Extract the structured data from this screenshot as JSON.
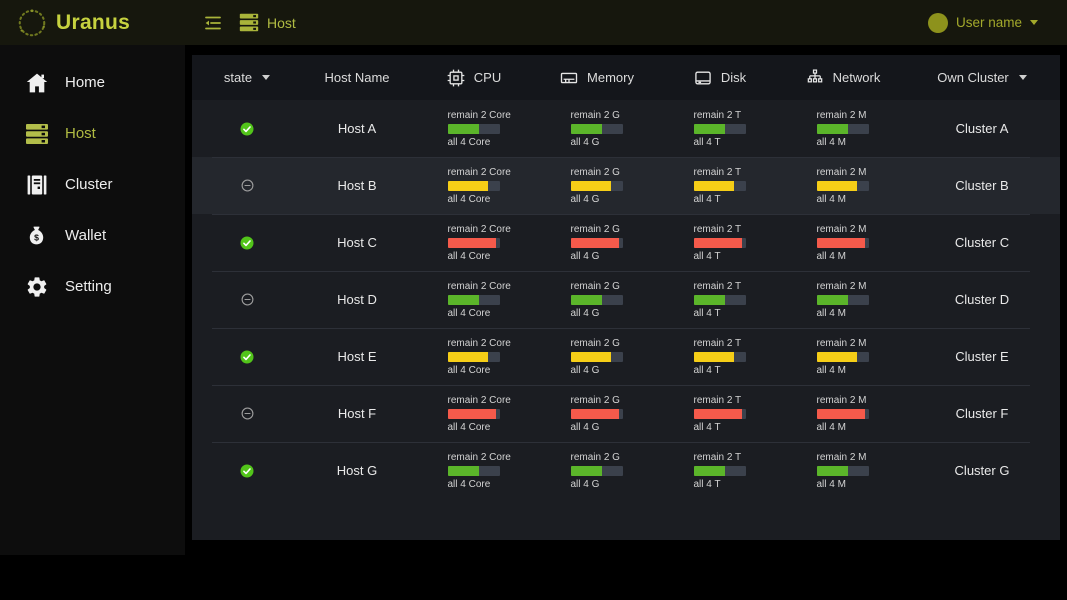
{
  "colors": {
    "accent": "#b0bb42",
    "green": "#5bb52a",
    "yellow": "#f6ce17",
    "red": "#f55a4b",
    "track": "#3b414c",
    "state_ok": "#52c41a",
    "state_paused": "#9c9c9c"
  },
  "topbar": {
    "logo_text": "Uranus",
    "breadcrumb_label": "Host",
    "user_name": "User name"
  },
  "sidebar": {
    "items": [
      {
        "label": "Home",
        "icon": "home-icon",
        "active": false
      },
      {
        "label": "Host",
        "icon": "host-icon",
        "active": true
      },
      {
        "label": "Cluster",
        "icon": "cluster-icon",
        "active": false
      },
      {
        "label": "Wallet",
        "icon": "wallet-icon",
        "active": false
      },
      {
        "label": "Setting",
        "icon": "setting-icon",
        "active": false
      }
    ]
  },
  "table": {
    "header": {
      "state": "state",
      "host": "Host Name",
      "cpu": "CPU",
      "memory": "Memory",
      "disk": "Disk",
      "network": "Network",
      "cluster": "Own Cluster"
    },
    "metric_fill_percent": {
      "green": 60,
      "yellow": 78,
      "red": 93
    },
    "rows": [
      {
        "state": "ok",
        "host": "Host A",
        "level": "green",
        "highlighted": false,
        "cpu": {
          "remain": "remain 2 Core",
          "all": "all 4 Core"
        },
        "memory": {
          "remain": "remain 2 G",
          "all": "all 4 G"
        },
        "disk": {
          "remain": "remain 2 T",
          "all": "all 4 T"
        },
        "network": {
          "remain": "remain 2 M",
          "all": "all 4 M"
        },
        "cluster": "Cluster A"
      },
      {
        "state": "paused",
        "host": "Host B",
        "level": "yellow",
        "highlighted": true,
        "cpu": {
          "remain": "remain 2 Core",
          "all": "all 4 Core"
        },
        "memory": {
          "remain": "remain 2 G",
          "all": "all 4 G"
        },
        "disk": {
          "remain": "remain 2 T",
          "all": "all 4 T"
        },
        "network": {
          "remain": "remain 2 M",
          "all": "all 4 M"
        },
        "cluster": "Cluster B"
      },
      {
        "state": "ok",
        "host": "Host C",
        "level": "red",
        "highlighted": false,
        "cpu": {
          "remain": "remain 2 Core",
          "all": "all 4 Core"
        },
        "memory": {
          "remain": "remain 2 G",
          "all": "all 4 G"
        },
        "disk": {
          "remain": "remain 2 T",
          "all": "all 4 T"
        },
        "network": {
          "remain": "remain 2 M",
          "all": "all 4 M"
        },
        "cluster": "Cluster C"
      },
      {
        "state": "paused",
        "host": "Host D",
        "level": "green",
        "highlighted": false,
        "cpu": {
          "remain": "remain 2 Core",
          "all": "all 4 Core"
        },
        "memory": {
          "remain": "remain 2 G",
          "all": "all 4 G"
        },
        "disk": {
          "remain": "remain 2 T",
          "all": "all 4 T"
        },
        "network": {
          "remain": "remain 2 M",
          "all": "all 4 M"
        },
        "cluster": "Cluster D"
      },
      {
        "state": "ok",
        "host": "Host E",
        "level": "yellow",
        "highlighted": false,
        "cpu": {
          "remain": "remain 2 Core",
          "all": "all 4 Core"
        },
        "memory": {
          "remain": "remain 2 G",
          "all": "all 4 G"
        },
        "disk": {
          "remain": "remain 2 T",
          "all": "all 4 T"
        },
        "network": {
          "remain": "remain 2 M",
          "all": "all 4 M"
        },
        "cluster": "Cluster E"
      },
      {
        "state": "paused",
        "host": "Host F",
        "level": "red",
        "highlighted": false,
        "cpu": {
          "remain": "remain 2 Core",
          "all": "all 4 Core"
        },
        "memory": {
          "remain": "remain 2 G",
          "all": "all 4 G"
        },
        "disk": {
          "remain": "remain 2 T",
          "all": "all 4 T"
        },
        "network": {
          "remain": "remain 2 M",
          "all": "all 4 M"
        },
        "cluster": "Cluster F"
      },
      {
        "state": "ok",
        "host": "Host G",
        "level": "green",
        "highlighted": false,
        "cpu": {
          "remain": "remain 2 Core",
          "all": "all 4 Core"
        },
        "memory": {
          "remain": "remain 2 G",
          "all": "all 4 G"
        },
        "disk": {
          "remain": "remain 2 T",
          "all": "all 4 T"
        },
        "network": {
          "remain": "remain 2 M",
          "all": "all 4 M"
        },
        "cluster": "Cluster G"
      }
    ]
  }
}
